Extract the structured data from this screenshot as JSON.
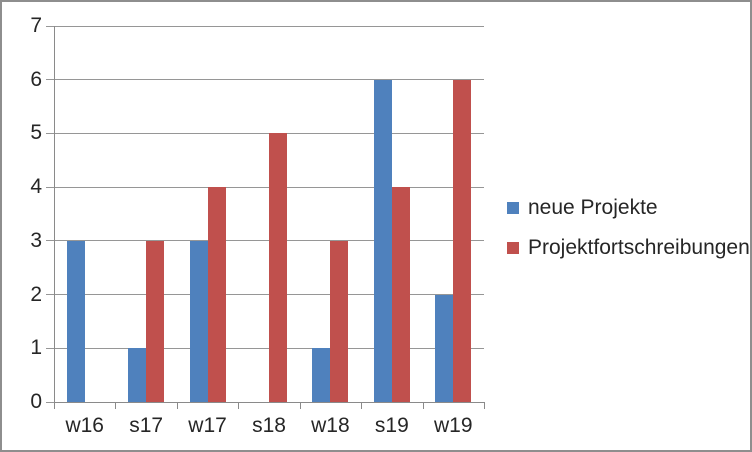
{
  "chart_data": {
    "type": "bar",
    "title": "",
    "xlabel": "",
    "ylabel": "",
    "categories": [
      "w16",
      "s17",
      "w17",
      "s18",
      "w18",
      "s19",
      "w19"
    ],
    "series": [
      {
        "name": "neue Projekte",
        "color": "#4F81BD",
        "values": [
          3,
          1,
          3,
          0,
          1,
          6,
          2
        ]
      },
      {
        "name": "Projektfortschreibungen",
        "color": "#C0504D",
        "values": [
          0,
          3,
          4,
          5,
          3,
          4,
          6
        ]
      }
    ],
    "ylim": [
      0,
      7
    ],
    "ytick_step": 1,
    "ytick_labels": [
      "0",
      "1",
      "2",
      "3",
      "4",
      "5",
      "6",
      "7"
    ],
    "grid": true,
    "legend_position": "right",
    "colors": {
      "gridline": "#969696",
      "axis": "#8a8a8a",
      "text": "#262626",
      "background": "#ffffff",
      "border": "#8e8e8e"
    }
  }
}
